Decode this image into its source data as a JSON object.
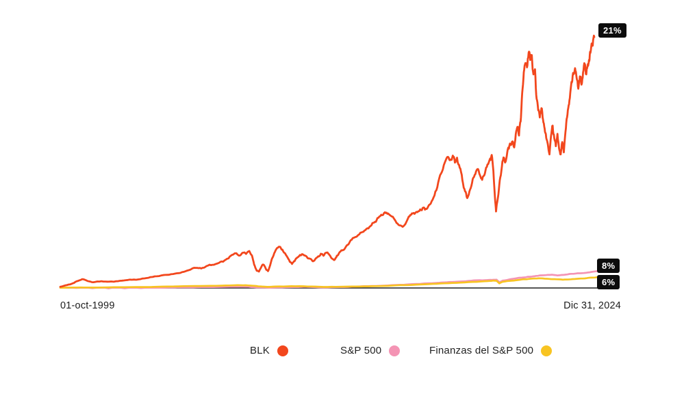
{
  "chart_data": {
    "type": "line",
    "title": "",
    "x_start_label": "01-oct-1999",
    "x_end_label": "Dic 31, 2024",
    "y_units": "cumulative total return, percent (estimated from plot; no y-axis shown)",
    "baseline_value": 0,
    "grid": false,
    "legend_position": "bottom",
    "end_labels": {
      "BLK": "21%",
      "S&P 500": "8%",
      "Finanzas del S&P 500": "6%"
    },
    "series": [
      {
        "name": "BLK",
        "color": "#F2471D",
        "end_label": "21%",
        "points": [
          [
            0.0,
            60
          ],
          [
            0.01,
            130
          ],
          [
            0.021,
            200
          ],
          [
            0.031,
            330
          ],
          [
            0.041,
            430
          ],
          [
            0.051,
            340
          ],
          [
            0.062,
            280
          ],
          [
            0.077,
            330
          ],
          [
            0.092,
            310
          ],
          [
            0.108,
            330
          ],
          [
            0.123,
            380
          ],
          [
            0.138,
            410
          ],
          [
            0.154,
            460
          ],
          [
            0.169,
            530
          ],
          [
            0.185,
            580
          ],
          [
            0.2,
            640
          ],
          [
            0.215,
            700
          ],
          [
            0.228,
            770
          ],
          [
            0.241,
            870
          ],
          [
            0.254,
            980
          ],
          [
            0.264,
            950
          ],
          [
            0.274,
            1070
          ],
          [
            0.285,
            1130
          ],
          [
            0.295,
            1200
          ],
          [
            0.305,
            1280
          ],
          [
            0.315,
            1440
          ],
          [
            0.324,
            1630
          ],
          [
            0.33,
            1690
          ],
          [
            0.336,
            1580
          ],
          [
            0.342,
            1720
          ],
          [
            0.348,
            1660
          ],
          [
            0.354,
            1800
          ],
          [
            0.359,
            1580
          ],
          [
            0.363,
            1150
          ],
          [
            0.368,
            840
          ],
          [
            0.372,
            800
          ],
          [
            0.376,
            1000
          ],
          [
            0.38,
            1140
          ],
          [
            0.385,
            930
          ],
          [
            0.389,
            820
          ],
          [
            0.393,
            1100
          ],
          [
            0.397,
            1460
          ],
          [
            0.402,
            1760
          ],
          [
            0.407,
            1960
          ],
          [
            0.411,
            2010
          ],
          [
            0.416,
            1870
          ],
          [
            0.421,
            1690
          ],
          [
            0.426,
            1470
          ],
          [
            0.43,
            1270
          ],
          [
            0.434,
            1170
          ],
          [
            0.439,
            1310
          ],
          [
            0.444,
            1490
          ],
          [
            0.449,
            1610
          ],
          [
            0.454,
            1640
          ],
          [
            0.46,
            1560
          ],
          [
            0.466,
            1440
          ],
          [
            0.472,
            1320
          ],
          [
            0.477,
            1390
          ],
          [
            0.483,
            1540
          ],
          [
            0.488,
            1670
          ],
          [
            0.493,
            1570
          ],
          [
            0.498,
            1720
          ],
          [
            0.503,
            1650
          ],
          [
            0.508,
            1450
          ],
          [
            0.513,
            1360
          ],
          [
            0.518,
            1570
          ],
          [
            0.523,
            1740
          ],
          [
            0.53,
            1850
          ],
          [
            0.537,
            2090
          ],
          [
            0.544,
            2330
          ],
          [
            0.551,
            2460
          ],
          [
            0.558,
            2580
          ],
          [
            0.566,
            2730
          ],
          [
            0.573,
            2870
          ],
          [
            0.581,
            3020
          ],
          [
            0.588,
            3190
          ],
          [
            0.594,
            3410
          ],
          [
            0.601,
            3570
          ],
          [
            0.608,
            3690
          ],
          [
            0.614,
            3630
          ],
          [
            0.621,
            3480
          ],
          [
            0.628,
            3260
          ],
          [
            0.635,
            3050
          ],
          [
            0.641,
            2980
          ],
          [
            0.648,
            3210
          ],
          [
            0.654,
            3490
          ],
          [
            0.66,
            3630
          ],
          [
            0.667,
            3710
          ],
          [
            0.674,
            3830
          ],
          [
            0.68,
            3920
          ],
          [
            0.686,
            3850
          ],
          [
            0.692,
            4070
          ],
          [
            0.699,
            4410
          ],
          [
            0.706,
            4910
          ],
          [
            0.713,
            5570
          ],
          [
            0.72,
            6110
          ],
          [
            0.726,
            6390
          ],
          [
            0.731,
            6260
          ],
          [
            0.735,
            6450
          ],
          [
            0.739,
            6110
          ],
          [
            0.743,
            6350
          ],
          [
            0.748,
            5860
          ],
          [
            0.753,
            5260
          ],
          [
            0.758,
            4710
          ],
          [
            0.762,
            4380
          ],
          [
            0.766,
            4690
          ],
          [
            0.771,
            5110
          ],
          [
            0.776,
            5510
          ],
          [
            0.781,
            5790
          ],
          [
            0.786,
            5490
          ],
          [
            0.79,
            5270
          ],
          [
            0.795,
            5570
          ],
          [
            0.8,
            6020
          ],
          [
            0.805,
            6310
          ],
          [
            0.808,
            6480
          ],
          [
            0.811,
            5710
          ],
          [
            0.814,
            4410
          ],
          [
            0.816,
            3730
          ],
          [
            0.819,
            4310
          ],
          [
            0.822,
            5010
          ],
          [
            0.826,
            5710
          ],
          [
            0.83,
            6360
          ],
          [
            0.834,
            6160
          ],
          [
            0.838,
            6750
          ],
          [
            0.842,
            7040
          ],
          [
            0.846,
            7130
          ],
          [
            0.85,
            6850
          ],
          [
            0.854,
            7660
          ],
          [
            0.856,
            7850
          ],
          [
            0.859,
            7430
          ],
          [
            0.862,
            8110
          ],
          [
            0.865,
            9510
          ],
          [
            0.868,
            10510
          ],
          [
            0.871,
            10960
          ],
          [
            0.874,
            10750
          ],
          [
            0.877,
            11460
          ],
          [
            0.88,
            11110
          ],
          [
            0.883,
            11350
          ],
          [
            0.886,
            10410
          ],
          [
            0.889,
            10660
          ],
          [
            0.892,
            9210
          ],
          [
            0.895,
            8660
          ],
          [
            0.898,
            8310
          ],
          [
            0.901,
            8760
          ],
          [
            0.904,
            8210
          ],
          [
            0.907,
            7760
          ],
          [
            0.91,
            7310
          ],
          [
            0.913,
            7010
          ],
          [
            0.916,
            6510
          ],
          [
            0.919,
            7410
          ],
          [
            0.922,
            7910
          ],
          [
            0.925,
            7310
          ],
          [
            0.928,
            6910
          ],
          [
            0.931,
            7510
          ],
          [
            0.934,
            6810
          ],
          [
            0.937,
            6510
          ],
          [
            0.94,
            7110
          ],
          [
            0.943,
            6610
          ],
          [
            0.946,
            7610
          ],
          [
            0.949,
            8310
          ],
          [
            0.952,
            8910
          ],
          [
            0.955,
            9510
          ],
          [
            0.958,
            10010
          ],
          [
            0.961,
            10410
          ],
          [
            0.964,
            10710
          ],
          [
            0.967,
            10210
          ],
          [
            0.97,
            9710
          ],
          [
            0.973,
            10310
          ],
          [
            0.976,
            9910
          ],
          [
            0.979,
            10510
          ],
          [
            0.982,
            10910
          ],
          [
            0.985,
            10410
          ],
          [
            0.988,
            10910
          ],
          [
            0.99,
            11110
          ],
          [
            0.992,
            11510
          ],
          [
            0.995,
            11910
          ],
          [
            0.997,
            11810
          ],
          [
            1.0,
            12230
          ]
        ]
      },
      {
        "name": "S&P 500",
        "color": "#F494B4",
        "end_label": "8%",
        "points": [
          [
            0.0,
            20
          ],
          [
            0.03,
            5
          ],
          [
            0.06,
            -10
          ],
          [
            0.09,
            -20
          ],
          [
            0.12,
            -15
          ],
          [
            0.15,
            -5
          ],
          [
            0.18,
            10
          ],
          [
            0.21,
            25
          ],
          [
            0.24,
            35
          ],
          [
            0.27,
            45
          ],
          [
            0.3,
            55
          ],
          [
            0.33,
            65
          ],
          [
            0.35,
            60
          ],
          [
            0.37,
            30
          ],
          [
            0.39,
            15
          ],
          [
            0.42,
            35
          ],
          [
            0.45,
            55
          ],
          [
            0.47,
            45
          ],
          [
            0.49,
            25
          ],
          [
            0.52,
            45
          ],
          [
            0.55,
            70
          ],
          [
            0.58,
            95
          ],
          [
            0.61,
            125
          ],
          [
            0.64,
            160
          ],
          [
            0.67,
            200
          ],
          [
            0.7,
            245
          ],
          [
            0.72,
            280
          ],
          [
            0.74,
            310
          ],
          [
            0.76,
            345
          ],
          [
            0.78,
            380
          ],
          [
            0.8,
            395
          ],
          [
            0.812,
            405
          ],
          [
            0.817,
            280
          ],
          [
            0.823,
            360
          ],
          [
            0.84,
            440
          ],
          [
            0.855,
            500
          ],
          [
            0.87,
            545
          ],
          [
            0.885,
            585
          ],
          [
            0.9,
            620
          ],
          [
            0.915,
            645
          ],
          [
            0.925,
            610
          ],
          [
            0.94,
            650
          ],
          [
            0.955,
            690
          ],
          [
            0.97,
            720
          ],
          [
            0.985,
            765
          ],
          [
            1.0,
            820
          ]
        ]
      },
      {
        "name": "Finanzas del S&P 500",
        "color": "#F8C422",
        "end_label": "6%",
        "points": [
          [
            0.0,
            15
          ],
          [
            0.03,
            25
          ],
          [
            0.06,
            20
          ],
          [
            0.1,
            35
          ],
          [
            0.14,
            45
          ],
          [
            0.18,
            60
          ],
          [
            0.22,
            80
          ],
          [
            0.26,
            95
          ],
          [
            0.3,
            115
          ],
          [
            0.33,
            135
          ],
          [
            0.35,
            125
          ],
          [
            0.365,
            95
          ],
          [
            0.375,
            70
          ],
          [
            0.385,
            55
          ],
          [
            0.4,
            70
          ],
          [
            0.43,
            85
          ],
          [
            0.46,
            75
          ],
          [
            0.49,
            50
          ],
          [
            0.52,
            60
          ],
          [
            0.55,
            70
          ],
          [
            0.58,
            85
          ],
          [
            0.61,
            105
          ],
          [
            0.64,
            135
          ],
          [
            0.67,
            170
          ],
          [
            0.7,
            205
          ],
          [
            0.73,
            245
          ],
          [
            0.76,
            285
          ],
          [
            0.79,
            330
          ],
          [
            0.806,
            360
          ],
          [
            0.812,
            345
          ],
          [
            0.817,
            225
          ],
          [
            0.823,
            300
          ],
          [
            0.84,
            355
          ],
          [
            0.86,
            420
          ],
          [
            0.875,
            450
          ],
          [
            0.89,
            470
          ],
          [
            0.905,
            450
          ],
          [
            0.92,
            430
          ],
          [
            0.935,
            405
          ],
          [
            0.95,
            425
          ],
          [
            0.965,
            455
          ],
          [
            0.98,
            480
          ],
          [
            0.99,
            505
          ],
          [
            1.0,
            530
          ]
        ]
      }
    ]
  },
  "axis": {
    "start": "01-oct-1999",
    "end": "Dic 31, 2024"
  },
  "badges": {
    "blk": "21%",
    "sp500": "8%",
    "fin": "6%"
  },
  "legend": {
    "items": [
      {
        "label": "BLK",
        "color": "#F2471D"
      },
      {
        "label": "S&P 500",
        "color": "#F494B4"
      },
      {
        "label": "Finanzas del S&P 500",
        "color": "#F8C422"
      }
    ]
  },
  "colors": {
    "background": "#FFFFFF",
    "baseline": "#1F1F1F",
    "badge_bg": "#0C0C0C",
    "badge_text": "#FFFFFF",
    "text": "#1D1D1D"
  }
}
